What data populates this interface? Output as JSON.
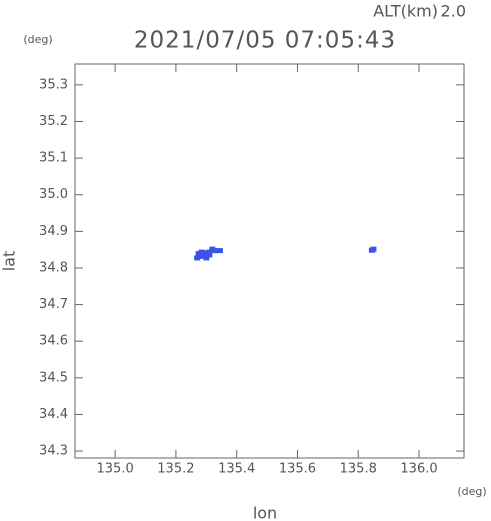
{
  "chart_data": {
    "type": "scatter",
    "title": "2021/07/05 07:05:43",
    "altitude_label": "ALT(km)",
    "altitude": {
      "value": 2,
      "label": "2.0"
    },
    "y_unit": "(deg)",
    "x_unit": "(deg)",
    "xlabel": "lon",
    "ylabel": "lat",
    "xlim": [
      134.868,
      136.148
    ],
    "ylim": [
      34.281,
      35.357
    ],
    "xticks": [
      {
        "value": 135,
        "label": "135.0"
      },
      135.2,
      135.4,
      135.6,
      135.8,
      {
        "value": 136,
        "label": "136.0"
      }
    ],
    "yticks": [
      34.3,
      34.4,
      34.5,
      34.6,
      34.7,
      34.8,
      34.9,
      {
        "value": 35,
        "label": "35.0"
      },
      35.1,
      35.2,
      35.3
    ],
    "series": [
      {
        "color": "#3a52e8",
        "x": [
          135.27,
          135.28,
          135.29,
          135.3,
          135.31,
          135.32,
          135.33,
          135.275,
          135.285,
          135.295,
          135.31,
          135.3,
          135.345,
          135.85,
          135.845
        ],
        "values": [
          34.826,
          34.83,
          34.834,
          34.838,
          34.842,
          34.85,
          34.846,
          34.838,
          34.842,
          34.84,
          34.834,
          34.826,
          34.846,
          34.85,
          34.847
        ]
      }
    ]
  }
}
